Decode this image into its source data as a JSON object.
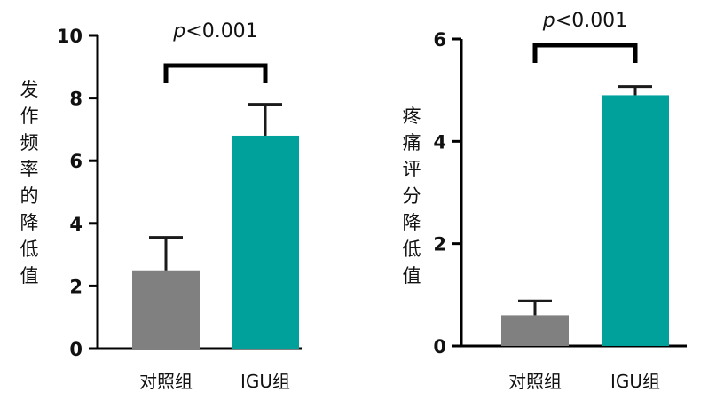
{
  "chart_data": [
    {
      "type": "bar",
      "categories": [
        "对照组",
        "IGU组"
      ],
      "values": [
        2.5,
        6.8
      ],
      "error": [
        1.05,
        1.0
      ],
      "ylabel": "发作频率的降低值",
      "ylim": [
        0,
        10
      ],
      "yticks": [
        "0",
        "2",
        "4",
        "6",
        "8",
        "10"
      ],
      "bar_colors": [
        "#808080",
        "#00a19a"
      ],
      "annotation": {
        "prefix": "p",
        "text": "<0.001"
      }
    },
    {
      "type": "bar",
      "categories": [
        "对照组",
        "IGU组"
      ],
      "values": [
        0.6,
        4.9
      ],
      "error": [
        0.28,
        0.17
      ],
      "ylabel": "疼痛评分降低值",
      "ylim": [
        0,
        6
      ],
      "yticks": [
        "0",
        "2",
        "4",
        "6"
      ],
      "bar_colors": [
        "#808080",
        "#00a19a"
      ],
      "annotation": {
        "prefix": "p",
        "text": "<0.001"
      }
    }
  ]
}
